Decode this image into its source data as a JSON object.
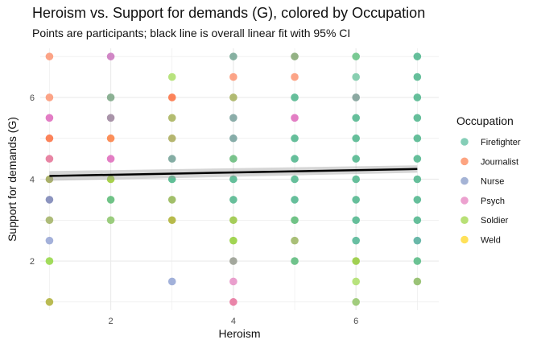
{
  "chart_data": {
    "type": "scatter",
    "title": "Heroism vs. Support for demands (G), colored by Occupation",
    "subtitle": "Points are participants; black line is overall linear fit with 95% CI",
    "xlabel": "Heroism",
    "ylabel": "Support for demands (G)",
    "xlim": [
      0.85,
      7.35
    ],
    "ylim": [
      0.8,
      7.2
    ],
    "xticks": [
      2,
      4,
      6
    ],
    "yticks": [
      2,
      4,
      6
    ],
    "grid": true,
    "legend": {
      "title": "Occupation",
      "position": "right",
      "entries": [
        {
          "label": "Firefighter",
          "color": "#66c2a5"
        },
        {
          "label": "Journalist",
          "color": "#fc8d62"
        },
        {
          "label": "Nurse",
          "color": "#8da0cb"
        },
        {
          "label": "Psych",
          "color": "#e78ac3"
        },
        {
          "label": "Soldier",
          "color": "#a6d854"
        },
        {
          "label": "Weld",
          "color": "#ffd92f"
        }
      ]
    },
    "fit": {
      "x": [
        1,
        7
      ],
      "y": [
        4.08,
        4.25
      ],
      "ci_halfwidth": [
        0.12,
        0.09
      ]
    },
    "points": [
      [
        1,
        7,
        "#fc9a7a"
      ],
      [
        1,
        6,
        "#fc9a7a"
      ],
      [
        1,
        5.5,
        "#e06fbf"
      ],
      [
        1,
        5,
        "#fc7548"
      ],
      [
        1,
        4.5,
        "#e6789a"
      ],
      [
        1,
        4,
        "#a2a85a"
      ],
      [
        1,
        3.5,
        "#8088b8"
      ],
      [
        1,
        3,
        "#a5b56a"
      ],
      [
        1,
        2.5,
        "#9aa8d6"
      ],
      [
        1,
        2,
        "#98d84a"
      ],
      [
        1,
        1,
        "#b2b440"
      ],
      [
        2,
        7,
        "#cc7ac0"
      ],
      [
        2,
        6,
        "#80a888"
      ],
      [
        2,
        5.5,
        "#a088a0"
      ],
      [
        2,
        5,
        "#fc8348"
      ],
      [
        2,
        4.5,
        "#e070be"
      ],
      [
        2,
        4,
        "#9ecc3a"
      ],
      [
        2,
        3.5,
        "#60bc7a"
      ],
      [
        2,
        3,
        "#90c870"
      ],
      [
        3,
        6.5,
        "#b0e070"
      ],
      [
        3,
        6,
        "#fc7548"
      ],
      [
        3,
        5.5,
        "#abb560"
      ],
      [
        3,
        5,
        "#adae60"
      ],
      [
        3,
        4.5,
        "#78a49a"
      ],
      [
        3,
        4,
        "#50b88c"
      ],
      [
        3,
        3.5,
        "#98b85a"
      ],
      [
        3,
        3,
        "#b0b438"
      ],
      [
        3,
        1.5,
        "#98a8d6"
      ],
      [
        4,
        7,
        "#7aa898"
      ],
      [
        4,
        6.5,
        "#fc9a7a"
      ],
      [
        4,
        6,
        "#aab464"
      ],
      [
        4,
        5.5,
        "#7ea4a0"
      ],
      [
        4,
        5,
        "#7aa4a0"
      ],
      [
        4,
        4.5,
        "#6cbc80"
      ],
      [
        4,
        4,
        "#54b890"
      ],
      [
        4,
        3.5,
        "#58b890"
      ],
      [
        4,
        3,
        "#9cc848"
      ],
      [
        4,
        2.5,
        "#98d040"
      ],
      [
        4,
        2,
        "#9a9e92"
      ],
      [
        4,
        1.5,
        "#e895c8"
      ],
      [
        4,
        1,
        "#e878a0"
      ],
      [
        5,
        7,
        "#88aa78"
      ],
      [
        5,
        6.5,
        "#fc9a7a"
      ],
      [
        5,
        6,
        "#55b890"
      ],
      [
        5,
        5.5,
        "#e070be"
      ],
      [
        5,
        5,
        "#55b890"
      ],
      [
        5,
        4.5,
        "#55b890"
      ],
      [
        5,
        4,
        "#55b890"
      ],
      [
        5,
        3.5,
        "#55b890"
      ],
      [
        5,
        3,
        "#62bc7a"
      ],
      [
        5,
        2.5,
        "#a0b868"
      ],
      [
        5,
        2,
        "#60bc80"
      ],
      [
        6,
        7,
        "#6cc488"
      ],
      [
        6,
        6.5,
        "#7ccaa8"
      ],
      [
        6,
        6,
        "#80a098"
      ],
      [
        6,
        5.5,
        "#55b890"
      ],
      [
        6,
        5,
        "#55b890"
      ],
      [
        6,
        4.5,
        "#55b890"
      ],
      [
        6,
        4,
        "#55b890"
      ],
      [
        6,
        3.5,
        "#55b890"
      ],
      [
        6,
        3,
        "#55b890"
      ],
      [
        6,
        2.5,
        "#58b898"
      ],
      [
        6,
        2,
        "#98cc40"
      ],
      [
        6,
        1.5,
        "#b0e070"
      ],
      [
        6,
        1,
        "#98c870"
      ],
      [
        7,
        7,
        "#55b890"
      ],
      [
        7,
        6.5,
        "#55b890"
      ],
      [
        7,
        6,
        "#55b890"
      ],
      [
        7,
        5.5,
        "#55b890"
      ],
      [
        7,
        5,
        "#55b890"
      ],
      [
        7,
        4.5,
        "#55b890"
      ],
      [
        7,
        4,
        "#55b890"
      ],
      [
        7,
        3.5,
        "#55b890"
      ],
      [
        7,
        3,
        "#55b890"
      ],
      [
        7,
        2.5,
        "#5ab0a0"
      ],
      [
        7,
        2,
        "#5cbc88"
      ],
      [
        7,
        1.5,
        "#90bc68"
      ]
    ]
  }
}
